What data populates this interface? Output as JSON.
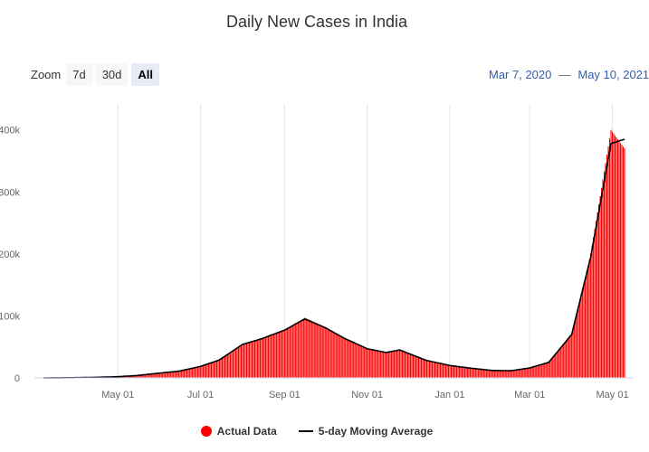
{
  "chart_data": {
    "type": "bar",
    "title": "Daily New Cases in India",
    "x_range": [
      "2020-03-07",
      "2021-05-10"
    ],
    "ylim": [
      0,
      420000
    ],
    "y_ticks": [
      {
        "value": 0,
        "label": "0"
      },
      {
        "value": 100000,
        "label": "100k"
      },
      {
        "value": 200000,
        "label": "200k"
      },
      {
        "value": 300000,
        "label": "300k"
      },
      {
        "value": 400000,
        "label": "400k"
      }
    ],
    "x_ticks": [
      {
        "date": "2020-05-01",
        "label": "May 01"
      },
      {
        "date": "2020-07-01",
        "label": "Jul 01"
      },
      {
        "date": "2020-09-01",
        "label": "Sep 01"
      },
      {
        "date": "2020-11-01",
        "label": "Nov 01"
      },
      {
        "date": "2021-01-01",
        "label": "Jan 01"
      },
      {
        "date": "2021-03-01",
        "label": "Mar 01"
      },
      {
        "date": "2021-05-01",
        "label": "May 01"
      }
    ],
    "grid": "vertical",
    "legend_position": "bottom-center",
    "series": [
      {
        "name": "Actual Data",
        "kind": "bar",
        "color": "#ff0000",
        "points": [
          {
            "x": "2020-03-07",
            "y": 0
          },
          {
            "x": "2020-04-01",
            "y": 500
          },
          {
            "x": "2020-04-15",
            "y": 1000
          },
          {
            "x": "2020-05-01",
            "y": 2000
          },
          {
            "x": "2020-05-15",
            "y": 4000
          },
          {
            "x": "2020-06-01",
            "y": 8000
          },
          {
            "x": "2020-06-15",
            "y": 11000
          },
          {
            "x": "2020-07-01",
            "y": 19000
          },
          {
            "x": "2020-07-15",
            "y": 30000
          },
          {
            "x": "2020-08-01",
            "y": 55000
          },
          {
            "x": "2020-08-15",
            "y": 64000
          },
          {
            "x": "2020-09-01",
            "y": 78000
          },
          {
            "x": "2020-09-16",
            "y": 97000
          },
          {
            "x": "2020-10-01",
            "y": 82000
          },
          {
            "x": "2020-10-15",
            "y": 65000
          },
          {
            "x": "2020-11-01",
            "y": 47000
          },
          {
            "x": "2020-11-15",
            "y": 40000
          },
          {
            "x": "2020-11-25",
            "y": 46000
          },
          {
            "x": "2020-12-15",
            "y": 28000
          },
          {
            "x": "2021-01-01",
            "y": 20000
          },
          {
            "x": "2021-01-15",
            "y": 16000
          },
          {
            "x": "2021-02-01",
            "y": 12000
          },
          {
            "x": "2021-02-15",
            "y": 11000
          },
          {
            "x": "2021-03-01",
            "y": 16000
          },
          {
            "x": "2021-03-15",
            "y": 26000
          },
          {
            "x": "2021-04-01",
            "y": 72000
          },
          {
            "x": "2021-04-15",
            "y": 200000
          },
          {
            "x": "2021-04-30",
            "y": 400000
          },
          {
            "x": "2021-05-10",
            "y": 370000
          }
        ]
      },
      {
        "name": "5-day Moving Average",
        "kind": "line",
        "color": "#000000",
        "points": [
          {
            "x": "2020-03-07",
            "y": 0
          },
          {
            "x": "2020-04-01",
            "y": 400
          },
          {
            "x": "2020-04-15",
            "y": 900
          },
          {
            "x": "2020-05-01",
            "y": 1900
          },
          {
            "x": "2020-05-15",
            "y": 3800
          },
          {
            "x": "2020-06-01",
            "y": 7800
          },
          {
            "x": "2020-06-15",
            "y": 10800
          },
          {
            "x": "2020-07-01",
            "y": 18500
          },
          {
            "x": "2020-07-15",
            "y": 29000
          },
          {
            "x": "2020-08-01",
            "y": 54000
          },
          {
            "x": "2020-08-15",
            "y": 63000
          },
          {
            "x": "2020-09-01",
            "y": 77000
          },
          {
            "x": "2020-09-16",
            "y": 95000
          },
          {
            "x": "2020-10-01",
            "y": 81000
          },
          {
            "x": "2020-10-15",
            "y": 64000
          },
          {
            "x": "2020-11-01",
            "y": 47000
          },
          {
            "x": "2020-11-15",
            "y": 41000
          },
          {
            "x": "2020-11-25",
            "y": 45000
          },
          {
            "x": "2020-12-15",
            "y": 28000
          },
          {
            "x": "2021-01-01",
            "y": 20000
          },
          {
            "x": "2021-01-15",
            "y": 16000
          },
          {
            "x": "2021-02-01",
            "y": 12000
          },
          {
            "x": "2021-02-15",
            "y": 11500
          },
          {
            "x": "2021-03-01",
            "y": 16000
          },
          {
            "x": "2021-03-15",
            "y": 25000
          },
          {
            "x": "2021-04-01",
            "y": 70000
          },
          {
            "x": "2021-04-15",
            "y": 195000
          },
          {
            "x": "2021-04-30",
            "y": 378000
          },
          {
            "x": "2021-05-10",
            "y": 385000
          }
        ]
      }
    ]
  },
  "zoom": {
    "label": "Zoom",
    "buttons": [
      {
        "label": "7d",
        "active": false
      },
      {
        "label": "30d",
        "active": false
      },
      {
        "label": "All",
        "active": true
      }
    ]
  },
  "range": {
    "from": "Mar 7, 2020",
    "separator": "—",
    "to": "May 10, 2021"
  }
}
